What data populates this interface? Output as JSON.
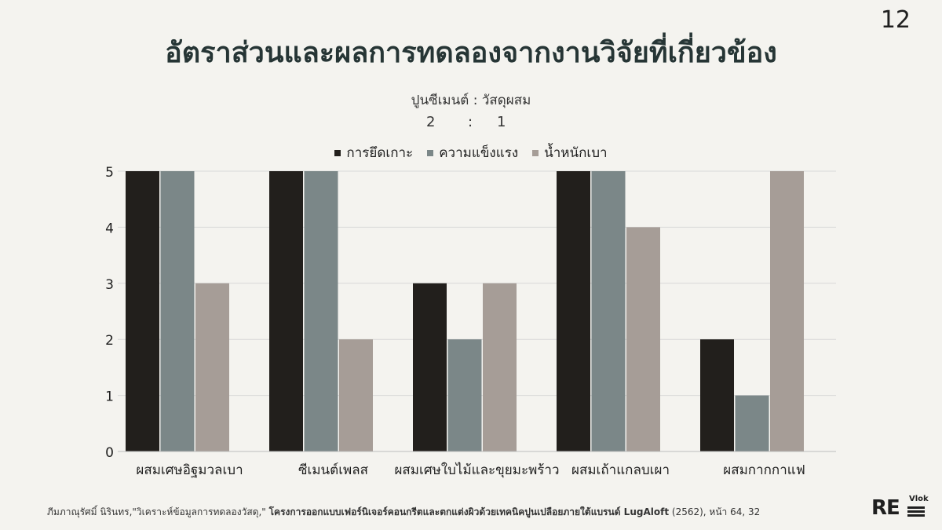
{
  "page_number": "12",
  "header": {
    "title": "อัตราส่วนและผลการทดลองจากงานวิจัยที่เกี่ยวข้อง",
    "subtitle": "ปูนซีเมนต์ : วัสดุผสม",
    "ratio_left": "2",
    "ratio_sep": ":",
    "ratio_right": "1"
  },
  "colors": {
    "series1": "#221f1c",
    "series2": "#7b8788",
    "series3": "#a69d97",
    "grid": "#d8d8d8"
  },
  "chart_data": {
    "type": "bar",
    "categories": [
      "ผสมเศษอิฐมวลเบา",
      "ซีเมนต์เพลส",
      "ผสมเศษใบไม้และขุยมะพร้าว",
      "ผสมเถ้าแกลบเผา",
      "ผสมกากกาแฟ"
    ],
    "series": [
      {
        "name": "การยึดเกาะ",
        "values": [
          5,
          5,
          3,
          5,
          2
        ]
      },
      {
        "name": "ความแข็งแรง",
        "values": [
          5,
          5,
          2,
          5,
          1
        ]
      },
      {
        "name": "น้ำหนักเบา",
        "values": [
          3,
          2,
          3,
          4,
          5
        ]
      }
    ],
    "ylim": [
      0,
      5
    ],
    "yticks": [
      "0",
      "1",
      "2",
      "3",
      "4",
      "5"
    ],
    "grid": true,
    "legend": "top-center"
  },
  "footer": {
    "citation_prefix": "ภีมภาณุรัศมิ์ นิรินทร,\"วิเคราะห์ข้อมูลการทดลองวัสดุ,\"",
    "citation_bold": "โครงการออกแบบเฟอร์นิเจอร์คอนกรีตและตกแต่งผิวด้วยเทคนิคปูนเปลือยภายใต้แบรนด์ LugAloft",
    "citation_suffix": "(2562), หน้า 64, 32"
  },
  "logo": {
    "main": "RE",
    "sub": "Vlok"
  }
}
